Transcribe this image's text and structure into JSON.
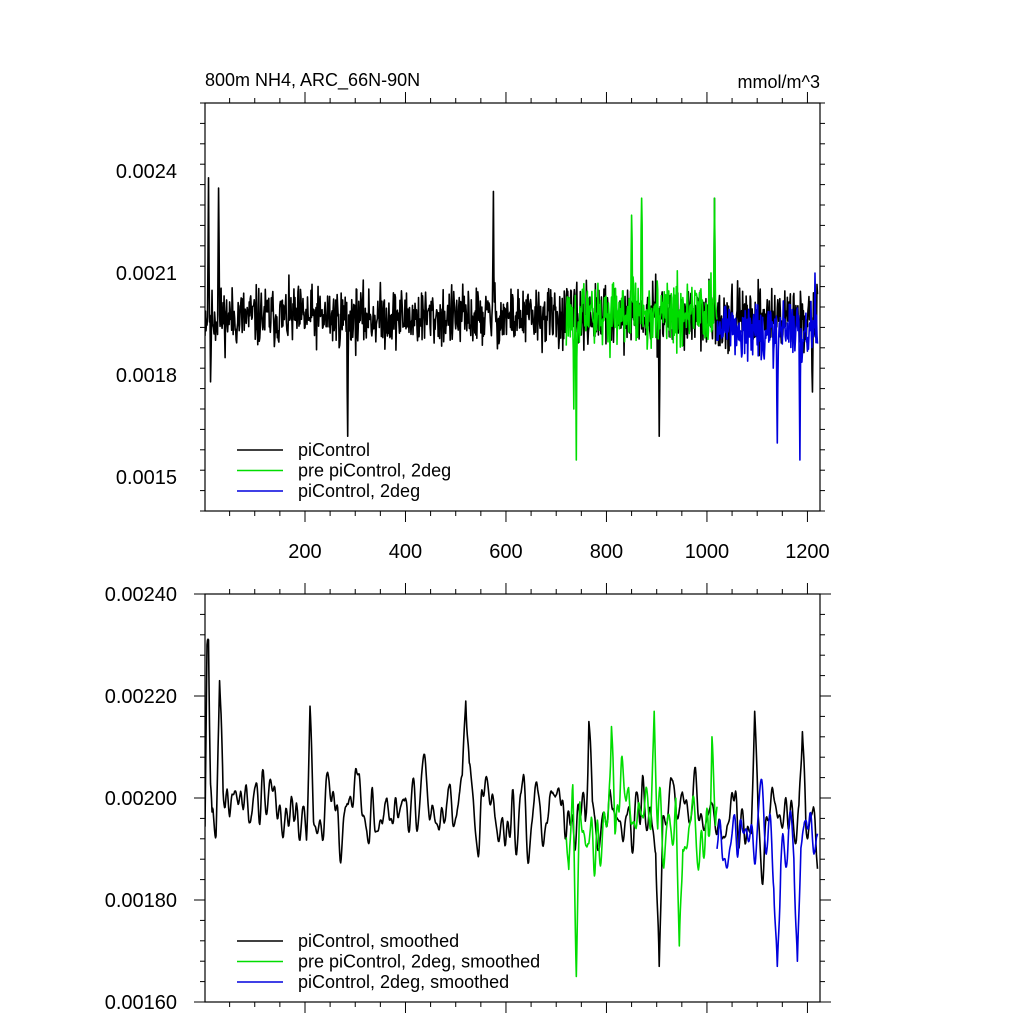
{
  "chart_data": [
    {
      "type": "line",
      "title_left": "800m NH4, ARC_66N-90N",
      "title_right": "mmol/m^3",
      "xlabel": "",
      "ylabel": "",
      "xlim": [
        1,
        1225
      ],
      "ylim": [
        0.0014,
        0.0026
      ],
      "x_ticks": [
        200,
        400,
        600,
        800,
        1000,
        1200
      ],
      "x_tick_labels": [
        "200",
        "400",
        "600",
        "800",
        "1000",
        "1200"
      ],
      "y_ticks": [
        0.0015,
        0.0018,
        0.0021,
        0.0024
      ],
      "y_tick_labels": [
        "0.0015",
        "0.0018",
        "0.0021",
        "0.0024"
      ],
      "grid": false,
      "legend_position": "bottom-left",
      "series": [
        {
          "name": "piControl",
          "color": "#000000",
          "x_range": [
            1,
            1220
          ],
          "mean": 0.00197,
          "amplitude": 0.00013,
          "keypoints": [
            [
              3,
              0.00193
            ],
            [
              8,
              0.00238
            ],
            [
              12,
              0.00178
            ],
            [
              28,
              0.00235
            ],
            [
              285,
              0.00162
            ],
            [
              575,
              0.00234
            ],
            [
              905,
              0.00162
            ],
            [
              1015,
              0.00232
            ],
            [
              1210,
              0.00175
            ]
          ]
        },
        {
          "name": "pre piControl, 2deg",
          "color": "#00dd00",
          "x_range": [
            720,
            1020
          ],
          "mean": 0.00198,
          "amplitude": 0.00014,
          "keypoints": [
            [
              740,
              0.00155
            ],
            [
              735,
              0.0017
            ],
            [
              850,
              0.00227
            ],
            [
              870,
              0.00232
            ],
            [
              1015,
              0.00232
            ]
          ]
        },
        {
          "name": "piControl, 2deg",
          "color": "#0000dd",
          "x_range": [
            1020,
            1220
          ],
          "mean": 0.00193,
          "amplitude": 0.00012,
          "keypoints": [
            [
              1140,
              0.0016
            ],
            [
              1185,
              0.00155
            ],
            [
              1215,
              0.0021
            ]
          ]
        }
      ]
    },
    {
      "type": "line",
      "title": "",
      "xlabel": "",
      "ylabel": "",
      "xlim": [
        1,
        1225
      ],
      "ylim": [
        0.0016,
        0.0024
      ],
      "x_ticks": [
        200,
        400,
        600,
        800,
        1000,
        1200
      ],
      "y_ticks": [
        0.0016,
        0.0018,
        0.002,
        0.0022,
        0.0024
      ],
      "y_tick_labels": [
        "0.00160",
        "0.00180",
        "0.00200",
        "0.00220",
        "0.00240"
      ],
      "grid": false,
      "legend_position": "bottom-left",
      "series": [
        {
          "name": "piControl, smoothed",
          "color": "#000000",
          "x_range": [
            1,
            1220
          ],
          "mean": 0.00197,
          "amplitude": 8e-05,
          "keypoints": [
            [
              5,
              0.00212
            ],
            [
              8,
              0.00231
            ],
            [
              30,
              0.00223
            ],
            [
              210,
              0.00218
            ],
            [
              520,
              0.00219
            ],
            [
              765,
              0.00215
            ],
            [
              905,
              0.00167
            ],
            [
              1095,
              0.00217
            ],
            [
              1190,
              0.00213
            ]
          ]
        },
        {
          "name": "pre piControl, 2deg, smoothed",
          "color": "#00dd00",
          "x_range": [
            720,
            1020
          ],
          "mean": 0.00195,
          "amplitude": 9e-05,
          "keypoints": [
            [
              725,
              0.00186
            ],
            [
              740,
              0.00165
            ],
            [
              810,
              0.00214
            ],
            [
              895,
              0.00217
            ],
            [
              945,
              0.00171
            ],
            [
              1010,
              0.00212
            ]
          ]
        },
        {
          "name": "piControl, 2deg, smoothed",
          "color": "#0000dd",
          "x_range": [
            1020,
            1220
          ],
          "mean": 0.00192,
          "amplitude": 8e-05,
          "keypoints": [
            [
              1140,
              0.00167
            ],
            [
              1180,
              0.00168
            ],
            [
              1220,
              0.00193
            ]
          ]
        }
      ]
    }
  ]
}
